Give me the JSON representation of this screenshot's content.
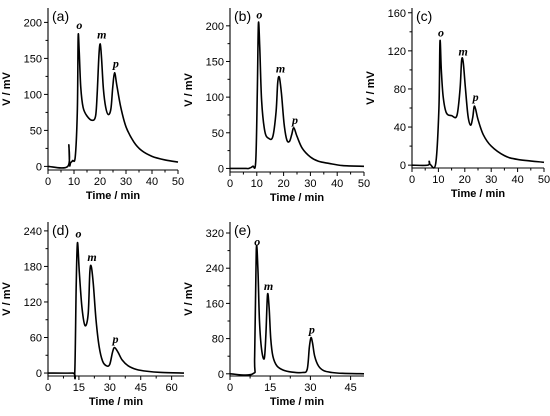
{
  "figure": {
    "xlabel": "Time / min",
    "ylabel": "V / mV",
    "peak_labels": [
      "o",
      "m",
      "p"
    ]
  },
  "chart_data": [
    {
      "type": "line",
      "panel": "(a)",
      "xlabel": "Time / min",
      "ylabel": "V / mV",
      "xlim": [
        0,
        50
      ],
      "ylim": [
        -5,
        220
      ],
      "xticks": [
        0,
        10,
        20,
        30,
        40,
        50
      ],
      "yticks": [
        0,
        50,
        100,
        150,
        200
      ],
      "series": [
        {
          "x": [
            0,
            7.6,
            8.0,
            8.3,
            8.7,
            9.5,
            10.5,
            11.3,
            11.6,
            12.0,
            12.6,
            13.5,
            15,
            17,
            18.3,
            18.9,
            19.6,
            20.1,
            20.6,
            21.3,
            22.2,
            23.2,
            24.2,
            24.9,
            25.6,
            26.5,
            28,
            30,
            33,
            36,
            40,
            45,
            50
          ],
          "y": [
            0,
            0,
            30,
            2,
            5,
            8,
            14,
            80,
            180,
            160,
            110,
            82,
            70,
            64,
            70,
            100,
            155,
            170,
            150,
            108,
            82,
            72,
            80,
            110,
            130,
            112,
            82,
            55,
            34,
            22,
            14,
            9,
            6
          ]
        }
      ],
      "annotations": [
        {
          "text": "o",
          "x": 11.7,
          "y": 185
        },
        {
          "text": "m",
          "x": 20.3,
          "y": 172
        },
        {
          "text": "p",
          "x": 25.7,
          "y": 132
        }
      ]
    },
    {
      "type": "line",
      "panel": "(b)",
      "xlabel": "Time / min",
      "ylabel": "V / mV",
      "xlim": [
        0,
        50
      ],
      "ylim": [
        -5,
        225
      ],
      "xticks": [
        0,
        10,
        20,
        30,
        40,
        50
      ],
      "yticks": [
        0,
        50,
        100,
        150,
        200
      ],
      "series": [
        {
          "x": [
            0,
            6,
            7,
            8.5,
            9.6,
            10.2,
            10.6,
            11.1,
            11.8,
            13,
            14.5,
            16,
            17.2,
            17.8,
            18.4,
            19.2,
            20.2,
            21.2,
            22.2,
            23,
            23.8,
            25,
            27,
            30,
            33,
            37,
            42,
            50
          ],
          "y": [
            0,
            0,
            0,
            3,
            10,
            110,
            203,
            170,
            95,
            52,
            42,
            45,
            80,
            120,
            128,
            105,
            62,
            40,
            38,
            47,
            57,
            45,
            28,
            16,
            10,
            7,
            4,
            3
          ]
        }
      ],
      "annotations": [
        {
          "text": "o",
          "x": 10.6,
          "y": 205
        },
        {
          "text": "m",
          "x": 18.5,
          "y": 129
        },
        {
          "text": "p",
          "x": 23.9,
          "y": 57
        }
      ]
    },
    {
      "type": "line",
      "panel": "(c)",
      "xlabel": "Time / min",
      "ylabel": "V / mV",
      "xlim": [
        0,
        50
      ],
      "ylim": [
        -3,
        165
      ],
      "xticks": [
        0,
        10,
        20,
        30,
        40,
        50
      ],
      "yticks": [
        0,
        40,
        80,
        120,
        160
      ],
      "series": [
        {
          "x": [
            0,
            6,
            6.5,
            7,
            9,
            10.2,
            10.6,
            11.1,
            11.8,
            13,
            15,
            17,
            18.2,
            18.8,
            19.4,
            20.2,
            21.2,
            22.2,
            23,
            23.7,
            25,
            27,
            30,
            35,
            40,
            50
          ],
          "y": [
            0,
            0,
            4,
            0.5,
            2,
            60,
            130,
            100,
            72,
            55,
            52,
            52,
            80,
            110,
            108,
            82,
            52,
            42,
            50,
            62,
            48,
            32,
            20,
            10,
            6,
            3
          ]
        }
      ],
      "annotations": [
        {
          "text": "o",
          "x": 10.6,
          "y": 131
        },
        {
          "text": "m",
          "x": 19.0,
          "y": 111
        },
        {
          "text": "p",
          "x": 23.7,
          "y": 63
        }
      ]
    },
    {
      "type": "line",
      "panel": "(d)",
      "xlabel": "Time / min",
      "ylabel": "V / mV",
      "xlim": [
        0,
        66
      ],
      "ylim": [
        -5,
        255
      ],
      "xticks": [
        0,
        15,
        30,
        45,
        60
      ],
      "yticks": [
        0,
        60,
        120,
        180,
        240
      ],
      "series": [
        {
          "x": [
            0,
            12,
            13,
            13.7,
            14.3,
            15.2,
            16.5,
            18,
            19.5,
            20.3,
            21,
            22,
            23.3,
            24.8,
            26.5,
            28.5,
            30,
            31.3,
            32.3,
            34,
            36,
            39,
            43,
            48,
            55,
            66
          ],
          "y": [
            0,
            0,
            2,
            150,
            220,
            170,
            110,
            80,
            100,
            170,
            180,
            150,
            90,
            45,
            20,
            12,
            15,
            35,
            43,
            35,
            22,
            12,
            6,
            3,
            1,
            0
          ]
        }
      ],
      "annotations": [
        {
          "text": "o",
          "x": 14.3,
          "y": 222
        },
        {
          "text": "m",
          "x": 20.9,
          "y": 182
        },
        {
          "text": "p",
          "x": 32.3,
          "y": 44
        }
      ]
    },
    {
      "type": "line",
      "panel": "(e)",
      "xlabel": "Time / min",
      "ylabel": "V / mV",
      "xlim": [
        0,
        50
      ],
      "ylim": [
        -5,
        345
      ],
      "xticks": [
        0,
        15,
        30,
        45
      ],
      "yticks": [
        0,
        80,
        160,
        240,
        320
      ],
      "series": [
        {
          "x": [
            0,
            8.5,
            9.2,
            9.8,
            10.4,
            11,
            11.8,
            12.8,
            13.4,
            14,
            14.6,
            15.2,
            16,
            17.5,
            20,
            23,
            27,
            28.8,
            29.6,
            30.2,
            30.8,
            31.6,
            33,
            35,
            38,
            42,
            50
          ],
          "y": [
            0,
            0,
            40,
            280,
            240,
            120,
            55,
            35,
            90,
            180,
            150,
            80,
            40,
            18,
            8,
            4,
            3,
            10,
            60,
            82,
            70,
            40,
            18,
            7,
            3,
            1,
            0
          ]
        }
      ],
      "annotations": [
        {
          "text": "o",
          "x": 9.8,
          "y": 282
        },
        {
          "text": "m",
          "x": 14.0,
          "y": 181
        },
        {
          "text": "p",
          "x": 30.2,
          "y": 83
        }
      ]
    }
  ]
}
